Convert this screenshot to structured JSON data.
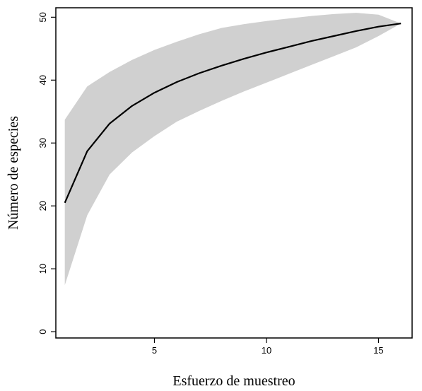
{
  "chart_data": {
    "type": "area",
    "xlabel": "Esfuerzo de muestreo",
    "ylabel": "Número de especies",
    "xlim": [
      0.6,
      16.5
    ],
    "ylim": [
      -1,
      51.5
    ],
    "xticks": [
      5,
      10,
      15
    ],
    "yticks": [
      0,
      10,
      20,
      30,
      40,
      50
    ],
    "grid": false,
    "legend": "none",
    "colors": {
      "band": "#d0d0d0",
      "line": "#000000",
      "frame": "#000000"
    },
    "x": [
      1,
      2,
      3,
      4,
      5,
      6,
      7,
      8,
      9,
      10,
      11,
      12,
      13,
      14,
      15,
      16
    ],
    "series": [
      {
        "role": "mean",
        "values": [
          20.5,
          28.7,
          33.1,
          35.9,
          38.0,
          39.7,
          41.1,
          42.3,
          43.4,
          44.4,
          45.3,
          46.2,
          47.0,
          47.8,
          48.5,
          49.0
        ]
      },
      {
        "role": "lower",
        "values": [
          7.4,
          18.5,
          25.0,
          28.5,
          31.1,
          33.4,
          35.1,
          36.7,
          38.2,
          39.6,
          41.0,
          42.4,
          43.8,
          45.2,
          47.0,
          49.0
        ]
      },
      {
        "role": "upper",
        "values": [
          33.7,
          39.0,
          41.3,
          43.2,
          44.8,
          46.1,
          47.3,
          48.3,
          48.9,
          49.4,
          49.8,
          50.2,
          50.5,
          50.7,
          50.4,
          49.0
        ]
      }
    ]
  }
}
